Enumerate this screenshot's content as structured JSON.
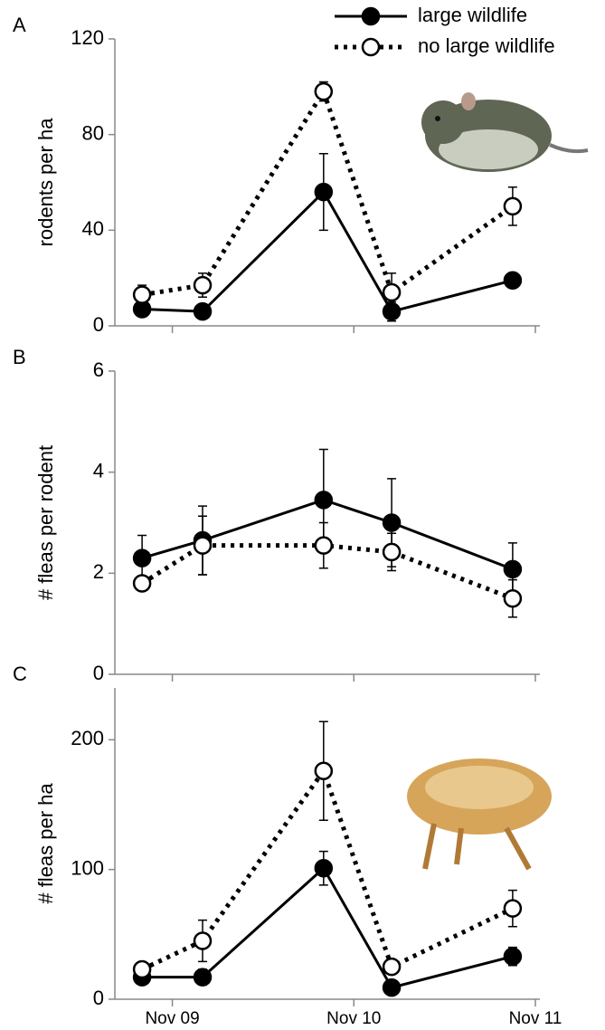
{
  "chart_data": [
    {
      "type": "line",
      "panel": "A",
      "ylabel": "rodents per ha",
      "legend": "top-right",
      "x": [
        -2,
        2,
        10,
        14.5,
        22.5
      ],
      "xlim": [
        -3.8,
        24.3
      ],
      "xticks": [
        0,
        12,
        24
      ],
      "ylim": [
        0,
        120
      ],
      "yticks": [
        0,
        40,
        80,
        120
      ],
      "series": [
        {
          "name": "large wildlife",
          "color": "#000000",
          "marker": "filled",
          "dash": "solid",
          "values": [
            7,
            6,
            56,
            6,
            19
          ],
          "errors": [
            1,
            1,
            16,
            4,
            1
          ]
        },
        {
          "name": "no large wildlife",
          "color": "#000000",
          "marker": "open",
          "dash": "dotted",
          "values": [
            13,
            17,
            98,
            14,
            50
          ],
          "errors": [
            4,
            5,
            4,
            8,
            8
          ]
        }
      ]
    },
    {
      "type": "line",
      "panel": "B",
      "ylabel": "# fleas per rodent",
      "x": [
        -2,
        2,
        10,
        14.5,
        22.5
      ],
      "xlim": [
        -3.8,
        24.3
      ],
      "xticks": [
        0,
        12,
        24
      ],
      "ylim": [
        0,
        6
      ],
      "yticks": [
        0,
        2,
        4,
        6
      ],
      "series": [
        {
          "color": "#000000",
          "marker": "filled",
          "dash": "solid",
          "values": [
            2.3,
            2.65,
            3.45,
            3.0,
            2.08
          ],
          "errors": [
            0.45,
            0.68,
            1.0,
            0.87,
            0.52
          ]
        },
        {
          "color": "#000000",
          "marker": "open",
          "dash": "dotted",
          "values": [
            1.8,
            2.55,
            2.55,
            2.42,
            1.5
          ],
          "errors": [
            0.1,
            0.58,
            0.45,
            0.37,
            0.37
          ]
        }
      ]
    },
    {
      "type": "line",
      "panel": "C",
      "ylabel": "# fleas per ha",
      "x": [
        -2,
        2,
        10,
        14.5,
        22.5
      ],
      "xlim": [
        -3.8,
        24.3
      ],
      "xticks": [
        {
          "value": 0,
          "label": "Nov 09"
        },
        {
          "value": 12,
          "label": "Nov 10"
        },
        {
          "value": 24,
          "label": "Nov 11"
        }
      ],
      "ylim": [
        0,
        240
      ],
      "yticks": [
        0,
        100,
        200
      ],
      "series": [
        {
          "color": "#000000",
          "marker": "filled",
          "dash": "solid",
          "values": [
            17,
            17,
            101,
            9,
            33
          ],
          "errors": [
            3,
            6,
            13,
            3,
            7
          ]
        },
        {
          "color": "#000000",
          "marker": "open",
          "dash": "dotted",
          "values": [
            23,
            45,
            176,
            25,
            70
          ],
          "errors": [
            4,
            16,
            38,
            4,
            14
          ]
        }
      ]
    }
  ]
}
